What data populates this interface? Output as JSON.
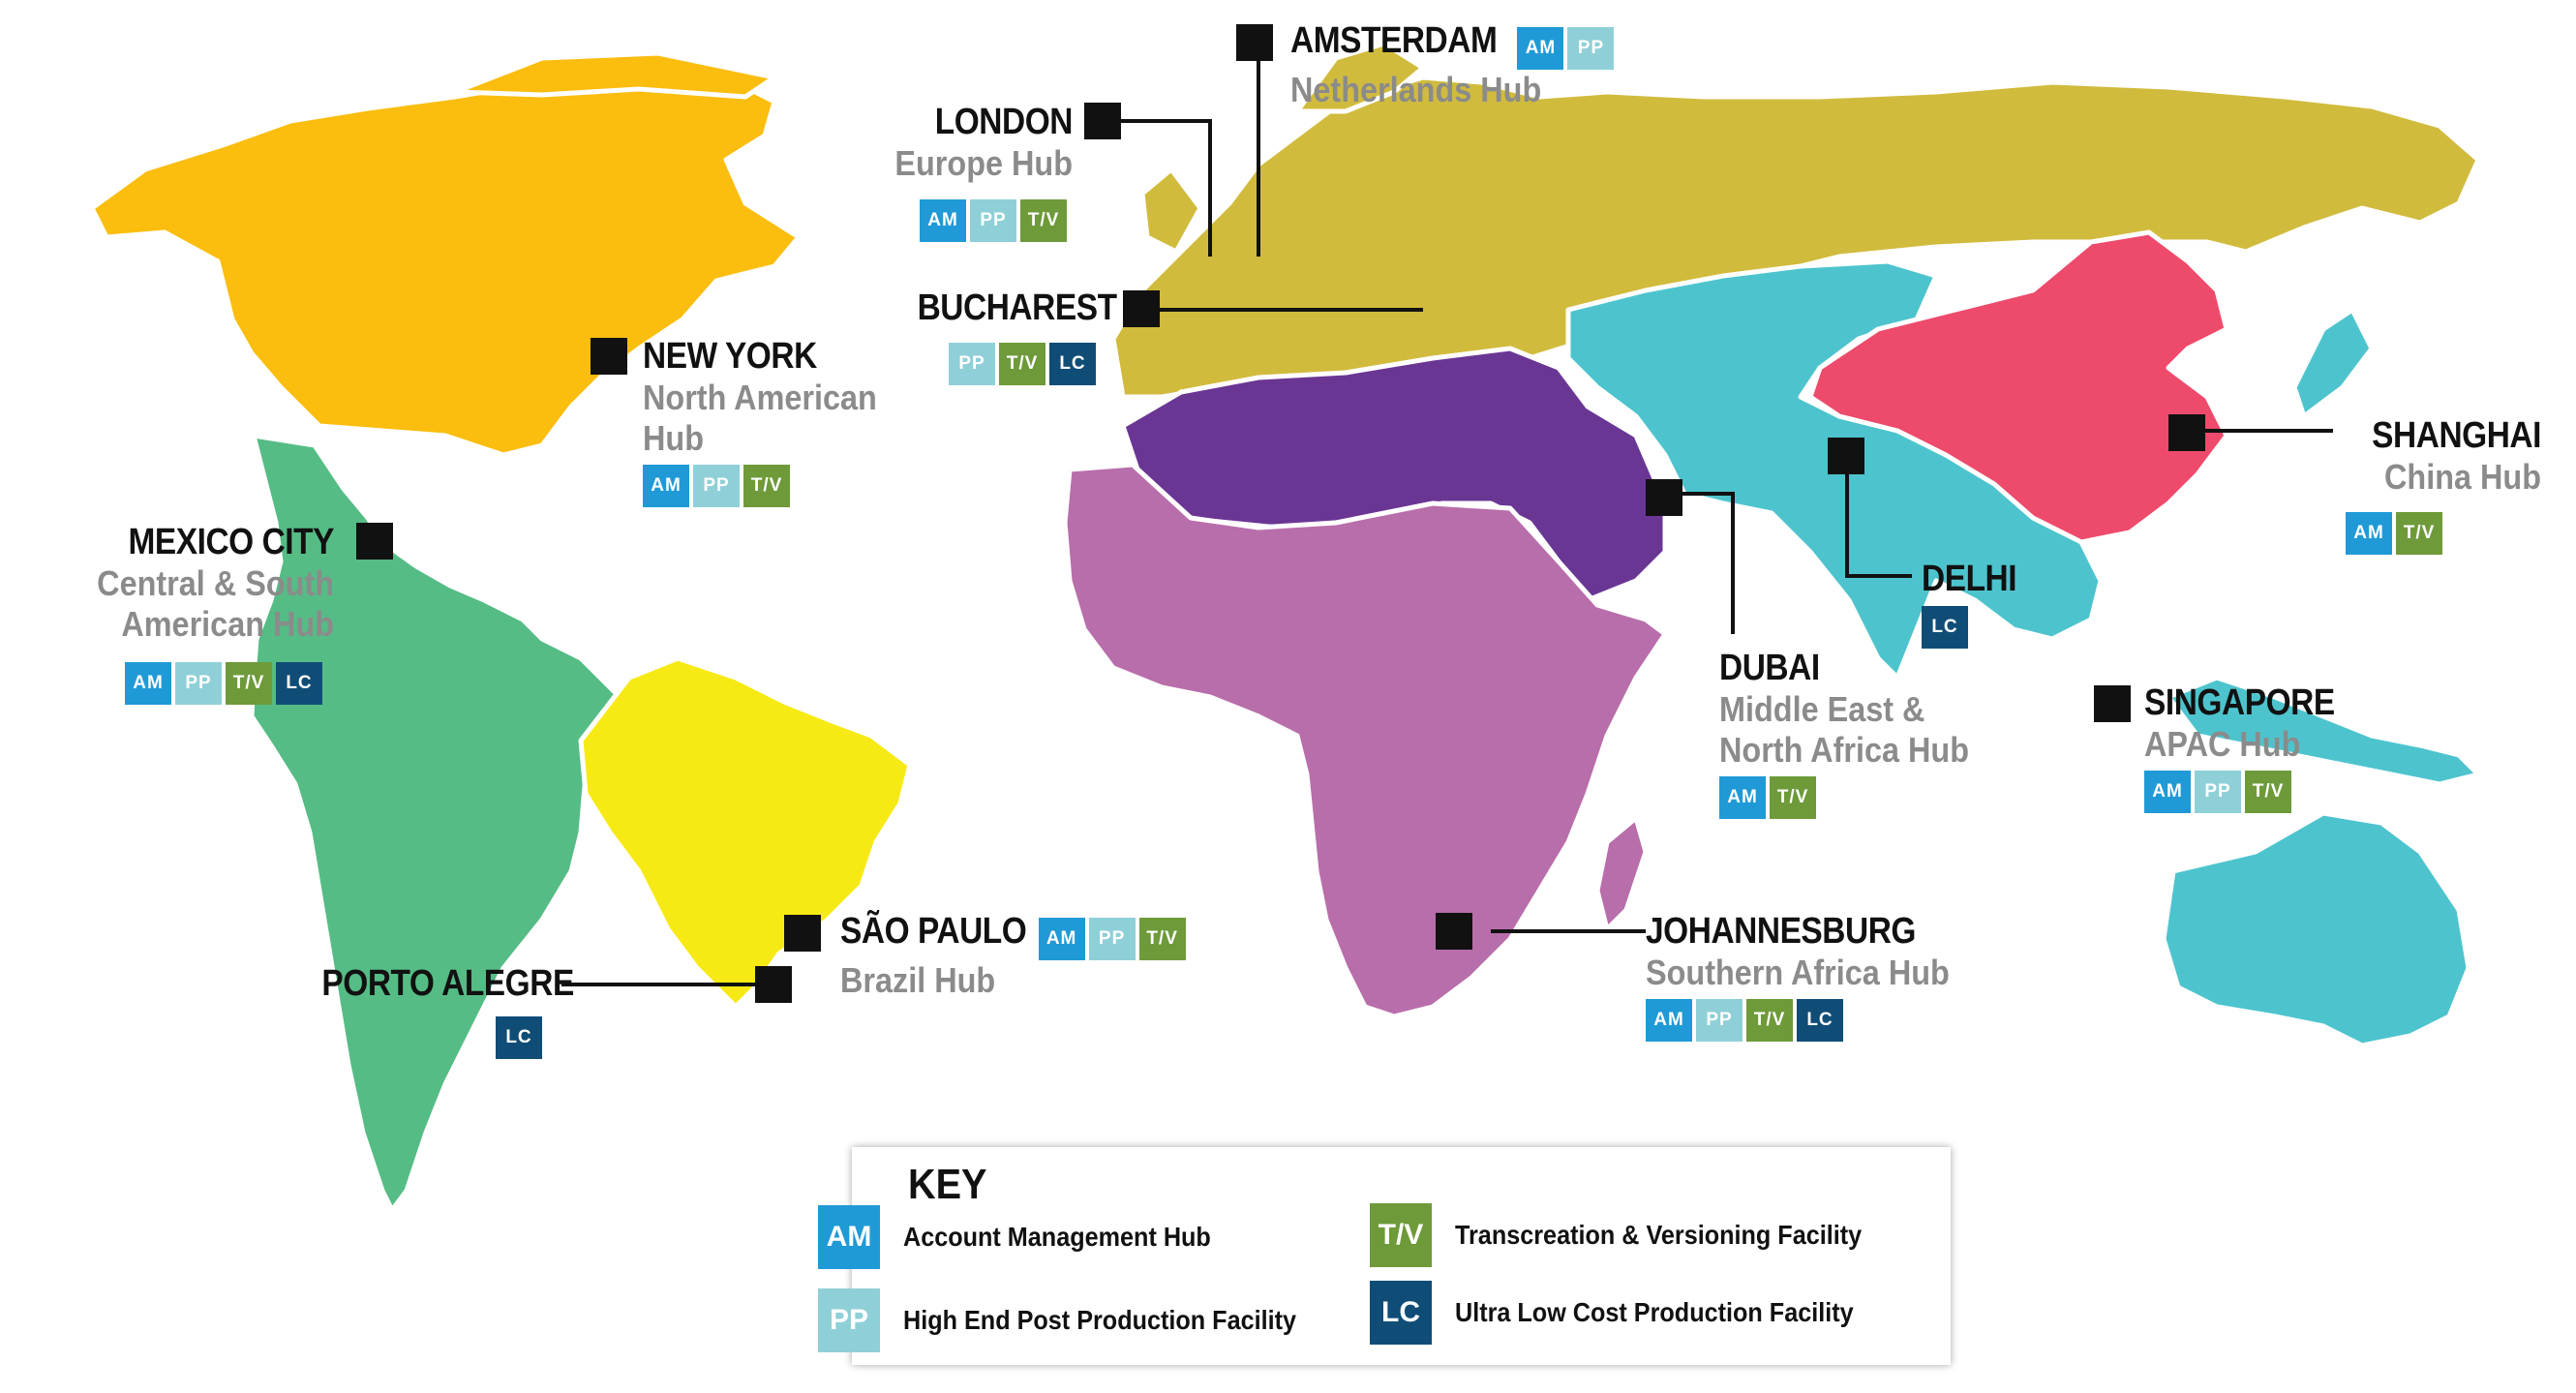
{
  "colors": {
    "north_america": "#fbbd0e",
    "latin_america": "#55bc85",
    "brazil": "#f7ea14",
    "europe_russia": "#d1bb3d",
    "mena": "#6a3694",
    "africa": "#b86eaa",
    "asia_pacific": "#4dc4cd",
    "china": "#ee4a6b",
    "am": "#1f9ad6",
    "pp": "#8fd0d8",
    "tv": "#6e9a3a",
    "lc": "#0f4d77"
  },
  "badge_labels": {
    "am": "AM",
    "pp": "PP",
    "tv": "T/V",
    "lc": "LC"
  },
  "cities": {
    "amsterdam": {
      "name": "AMSTERDAM",
      "hub": "Netherlands Hub"
    },
    "london": {
      "name": "LONDON",
      "hub": "Europe Hub"
    },
    "bucharest": {
      "name": "BUCHAREST"
    },
    "new_york": {
      "name": "NEW YORK",
      "hub_line1": "North American",
      "hub_line2": "Hub"
    },
    "mexico_city": {
      "name": "MEXICO CITY",
      "hub_line1": "Central & South",
      "hub_line2": "American Hub"
    },
    "sao_paulo": {
      "name": "SÃO PAULO",
      "hub": "Brazil Hub"
    },
    "porto_alegre": {
      "name": "PORTO ALEGRE"
    },
    "johannesburg": {
      "name": "JOHANNESBURG",
      "hub": "Southern Africa Hub"
    },
    "dubai": {
      "name": "DUBAI",
      "hub_line1": "Middle East &",
      "hub_line2": "North Africa Hub"
    },
    "delhi": {
      "name": "DELHI"
    },
    "shanghai": {
      "name": "SHANGHAI",
      "hub": "China Hub"
    },
    "singapore": {
      "name": "SINGAPORE",
      "hub": "APAC Hub"
    }
  },
  "key": {
    "title": "KEY",
    "items": [
      {
        "badge": "AM",
        "label": "Account Management Hub"
      },
      {
        "badge": "PP",
        "label": "High End Post Production Facility"
      },
      {
        "badge": "T/V",
        "label": "Transcreation & Versioning Facility"
      },
      {
        "badge": "LC",
        "label": "Ultra Low Cost Production Facility"
      }
    ]
  }
}
